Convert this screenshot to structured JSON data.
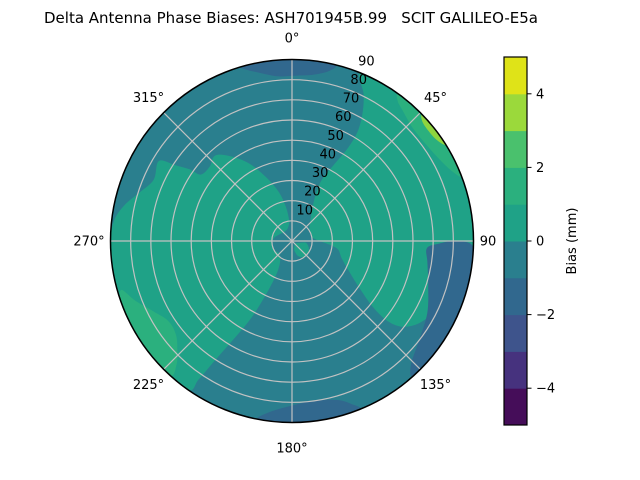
{
  "title": "Delta Antenna Phase Biases: ASH701945B.99   SCIT GALILEO-E5a",
  "chart_data": {
    "type": "heatmap",
    "subtype": "polar_contourf_skyplot",
    "radial_range": [
      0,
      90
    ],
    "radial_grid_values": [
      10,
      20,
      30,
      40,
      50,
      60,
      70,
      80
    ],
    "radial_tick_labels": [
      "10",
      "20",
      "30",
      "40",
      "50",
      "60",
      "70",
      "80",
      "90"
    ],
    "radial_label_angle_deg": 22.5,
    "theta_ticks": [
      {
        "angle": 0,
        "label": "0°"
      },
      {
        "angle": 45,
        "label": "45°"
      },
      {
        "angle": 90,
        "label": "90"
      },
      {
        "angle": 135,
        "label": "135°"
      },
      {
        "angle": 180,
        "label": "180°"
      },
      {
        "angle": 225,
        "label": "225°"
      },
      {
        "angle": 270,
        "label": "270°"
      },
      {
        "angle": 315,
        "label": "315°"
      }
    ],
    "spoke_angles": [
      0,
      45,
      90,
      135,
      180,
      225,
      270,
      315
    ],
    "grid_color": "#c2c2c2",
    "outline_color": "#000000",
    "background_region": {
      "name": "base-disk",
      "bias_range_mm": "-1 to 0",
      "color": "#2a7f8e"
    },
    "regions": [
      {
        "name": "green-left",
        "bias_range_mm": "0 to 1",
        "color": "#1fa287",
        "points": [
          [
            215,
            90
          ],
          [
            228,
            90
          ],
          [
            242,
            90
          ],
          [
            256,
            90
          ],
          [
            268,
            90
          ],
          [
            276,
            89
          ],
          [
            282,
            85
          ],
          [
            288,
            79
          ],
          [
            294,
            75
          ],
          [
            301,
            77
          ],
          [
            303,
            69
          ],
          [
            305,
            62
          ],
          [
            306,
            56
          ],
          [
            312,
            55
          ],
          [
            318,
            57
          ],
          [
            324,
            52
          ],
          [
            331,
            44
          ],
          [
            338,
            34
          ],
          [
            345,
            25
          ],
          [
            350,
            17
          ],
          [
            352,
            10
          ],
          [
            344,
            7
          ],
          [
            332,
            6
          ],
          [
            316,
            6
          ],
          [
            298,
            7
          ],
          [
            280,
            9
          ],
          [
            262,
            10
          ],
          [
            244,
            10
          ],
          [
            228,
            9
          ],
          [
            216,
            10
          ],
          [
            208,
            13
          ],
          [
            205,
            19
          ],
          [
            206,
            30
          ],
          [
            208,
            44
          ],
          [
            211,
            58
          ],
          [
            213,
            72
          ],
          [
            214,
            83
          ]
        ]
      },
      {
        "name": "green-right",
        "bias_range_mm": "0 to 1",
        "color": "#1fa287",
        "points": [
          [
            22,
            90
          ],
          [
            32,
            90
          ],
          [
            44,
            90
          ],
          [
            56,
            90
          ],
          [
            68,
            90
          ],
          [
            80,
            90
          ],
          [
            90,
            90
          ],
          [
            98,
            89
          ],
          [
            103,
            84
          ],
          [
            109,
            81
          ],
          [
            116,
            79
          ],
          [
            123,
            75
          ],
          [
            128,
            69
          ],
          [
            130,
            61
          ],
          [
            129,
            51
          ],
          [
            125,
            41
          ],
          [
            118,
            32
          ],
          [
            109,
            26
          ],
          [
            100,
            23
          ],
          [
            94,
            17
          ],
          [
            87,
            12
          ],
          [
            78,
            10
          ],
          [
            66,
            10
          ],
          [
            52,
            11
          ],
          [
            41,
            14
          ],
          [
            32,
            19
          ],
          [
            27,
            26
          ],
          [
            26,
            34
          ],
          [
            29,
            44
          ],
          [
            31,
            54
          ],
          [
            31,
            63
          ],
          [
            29,
            72
          ],
          [
            26,
            81
          ]
        ]
      },
      {
        "name": "green-center-south",
        "bias_range_mm": "0 to 1",
        "color": "#1fa287",
        "points": [
          [
            97,
            7
          ],
          [
            112,
            9
          ],
          [
            128,
            10
          ],
          [
            144,
            10
          ],
          [
            158,
            8
          ],
          [
            166,
            5
          ],
          [
            157,
            3
          ],
          [
            142,
            2
          ],
          [
            124,
            2
          ],
          [
            108,
            3
          ],
          [
            99,
            5
          ]
        ]
      },
      {
        "name": "bright-rim-225",
        "bias_range_mm": "1 to 2",
        "color": "#2bb07e",
        "points": [
          [
            222,
            90
          ],
          [
            230,
            90
          ],
          [
            240,
            90
          ],
          [
            250,
            90
          ],
          [
            254,
            88
          ],
          [
            249,
            83
          ],
          [
            243,
            77
          ],
          [
            237,
            73
          ],
          [
            231,
            74
          ],
          [
            226,
            79
          ],
          [
            223,
            84
          ]
        ]
      },
      {
        "name": "bright-rim-45",
        "bias_range_mm": "1 to 2",
        "color": "#2bb07e",
        "points": [
          [
            36,
            90
          ],
          [
            44,
            90
          ],
          [
            53,
            90
          ],
          [
            62,
            90
          ],
          [
            69,
            90
          ],
          [
            67,
            87
          ],
          [
            62,
            84
          ],
          [
            55,
            82
          ],
          [
            47,
            82
          ],
          [
            40,
            85
          ],
          [
            37,
            87
          ]
        ]
      },
      {
        "name": "bright-rim-45-sliver",
        "bias_range_mm": "3 to 4",
        "color": "#8ed43f",
        "points": [
          [
            46,
            90
          ],
          [
            52,
            90
          ],
          [
            58,
            90
          ],
          [
            55,
            87.5
          ],
          [
            50,
            87
          ],
          [
            47,
            88
          ]
        ]
      },
      {
        "name": "dark-rim-north",
        "bias_range_mm": "-2 to -1",
        "color": "#31688e",
        "points": [
          [
            344,
            90
          ],
          [
            352,
            90
          ],
          [
            0,
            90
          ],
          [
            7,
            90
          ],
          [
            14,
            90
          ],
          [
            12,
            86
          ],
          [
            7,
            83
          ],
          [
            1,
            82
          ],
          [
            355,
            82
          ],
          [
            349,
            85
          ],
          [
            345,
            88
          ]
        ]
      },
      {
        "name": "dark-rim-east",
        "bias_range_mm": "-2 to -1",
        "color": "#31688e",
        "points": [
          [
            92,
            90
          ],
          [
            103,
            90
          ],
          [
            115,
            90
          ],
          [
            127,
            90
          ],
          [
            138,
            90
          ],
          [
            136,
            85
          ],
          [
            128,
            80
          ],
          [
            118,
            76
          ],
          [
            108,
            71
          ],
          [
            99,
            68
          ],
          [
            93,
            67
          ],
          [
            91,
            73
          ],
          [
            90,
            81
          ]
        ]
      },
      {
        "name": "dark-rim-south",
        "bias_range_mm": "-2 to -1",
        "color": "#31688e",
        "points": [
          [
            158,
            90
          ],
          [
            166,
            90
          ],
          [
            175,
            90
          ],
          [
            184,
            90
          ],
          [
            191,
            90
          ],
          [
            188,
            86
          ],
          [
            181,
            82
          ],
          [
            172,
            80
          ],
          [
            164,
            82
          ],
          [
            160,
            86
          ]
        ]
      }
    ],
    "colorbar": {
      "label": "Bias (mm)",
      "range": [
        -5,
        5
      ],
      "ticks": [
        {
          "value": 4,
          "label": "4"
        },
        {
          "value": 2,
          "label": "2"
        },
        {
          "value": 0,
          "label": "0"
        },
        {
          "value": -2,
          "label": "−2"
        },
        {
          "value": -4,
          "label": "−4"
        }
      ],
      "bands_bottom_to_top": [
        {
          "range_mm": "-5 to -4",
          "color": "#450d59"
        },
        {
          "range_mm": "-4 to -3",
          "color": "#46327e"
        },
        {
          "range_mm": "-3 to -2",
          "color": "#3e548c"
        },
        {
          "range_mm": "-2 to -1",
          "color": "#31688e"
        },
        {
          "range_mm": "-1 to 0",
          "color": "#2a7f8e"
        },
        {
          "range_mm": "0 to 1",
          "color": "#1fa287"
        },
        {
          "range_mm": "1 to 2",
          "color": "#2bb07e"
        },
        {
          "range_mm": "2 to 3",
          "color": "#4ac16d"
        },
        {
          "range_mm": "3 to 4",
          "color": "#9bd93b"
        },
        {
          "range_mm": "4 to 5",
          "color": "#dfe318"
        }
      ]
    }
  }
}
